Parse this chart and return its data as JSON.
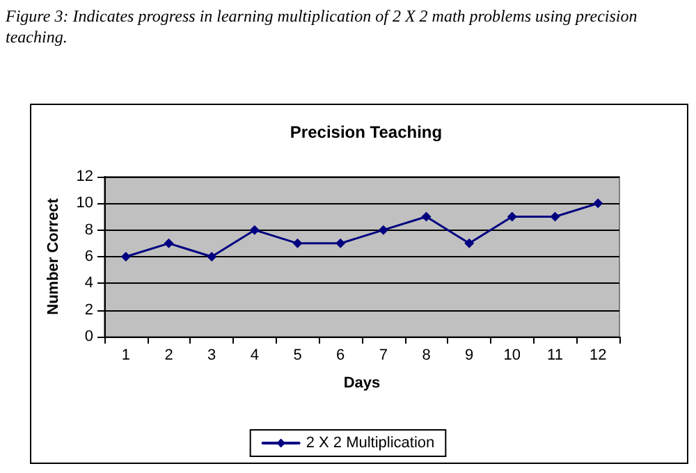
{
  "chart_data": {
    "type": "line",
    "title": "Precision Teaching",
    "xlabel": "Days",
    "ylabel": "Number Correct",
    "annotations": [
      "Figure 3: Indicates progress in learning multiplication of 2 X 2 math problems using precision teaching."
    ],
    "categories": [
      "1",
      "2",
      "3",
      "4",
      "5",
      "6",
      "7",
      "8",
      "9",
      "10",
      "11",
      "12"
    ],
    "series": [
      {
        "name": "2 X 2 Multiplication",
        "color": "#000080",
        "values": [
          6,
          7,
          6,
          8,
          7,
          7,
          8,
          9,
          7,
          9,
          9,
          10
        ]
      }
    ],
    "ylim": [
      0,
      12
    ],
    "yticks": [
      0,
      2,
      4,
      6,
      8,
      10,
      12
    ],
    "grid": "y",
    "legend": "bottom",
    "marker": "diamond",
    "line_style": "solid"
  }
}
